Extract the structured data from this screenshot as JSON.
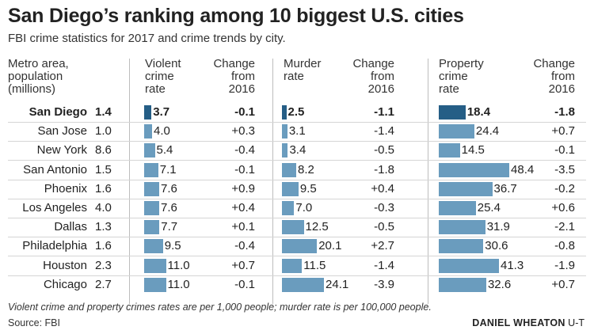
{
  "title": "San Diego’s ranking among 10 biggest U.S. cities",
  "subtitle": "FBI crime statistics for 2017 and crime trends by city.",
  "headers": {
    "metro": [
      "Metro area,",
      "population",
      "(millions)"
    ],
    "violent": [
      "Violent",
      "crime",
      "rate"
    ],
    "violent_change": [
      "Change",
      "from",
      "2016"
    ],
    "murder": [
      "Murder",
      "rate"
    ],
    "murder_change": [
      "Change",
      "from",
      "2016"
    ],
    "property": [
      "Property",
      "crime",
      "rate"
    ],
    "property_change": [
      "Change",
      "from",
      "2016"
    ]
  },
  "colors": {
    "highlight_bar": "#255e86",
    "bar": "#6a9cbe"
  },
  "chart_data": {
    "type": "table",
    "highlight": "San Diego",
    "columns": [
      "Metro area",
      "Population (millions)",
      "Violent crime rate",
      "Change from 2016",
      "Murder rate",
      "Change from 2016",
      "Property crime rate",
      "Change from 2016"
    ],
    "rows": [
      {
        "city": "San Diego",
        "population": "1.4",
        "violent": "3.7",
        "violent_change": "-0.1",
        "murder": "2.5",
        "murder_change": "-1.1",
        "property": "18.4",
        "property_change": "-1.8"
      },
      {
        "city": "San Jose",
        "population": "1.0",
        "violent": "4.0",
        "violent_change": "+0.3",
        "murder": "3.1",
        "murder_change": "-1.4",
        "property": "24.4",
        "property_change": "+0.7"
      },
      {
        "city": "New York",
        "population": "8.6",
        "violent": "5.4",
        "violent_change": "-0.4",
        "murder": "3.4",
        "murder_change": "-0.5",
        "property": "14.5",
        "property_change": "-0.1"
      },
      {
        "city": "San Antonio",
        "population": "1.5",
        "violent": "7.1",
        "violent_change": "-0.1",
        "murder": "8.2",
        "murder_change": "-1.8",
        "property": "48.4",
        "property_change": "-3.5"
      },
      {
        "city": "Phoenix",
        "population": "1.6",
        "violent": "7.6",
        "violent_change": "+0.9",
        "murder": "9.5",
        "murder_change": "+0.4",
        "property": "36.7",
        "property_change": "-0.2"
      },
      {
        "city": "Los Angeles",
        "population": "4.0",
        "violent": "7.6",
        "violent_change": "+0.4",
        "murder": "7.0",
        "murder_change": "-0.3",
        "property": "25.4",
        "property_change": "+0.6"
      },
      {
        "city": "Dallas",
        "population": "1.3",
        "violent": "7.7",
        "violent_change": "+0.1",
        "murder": "12.5",
        "murder_change": "-0.5",
        "property": "31.9",
        "property_change": "-2.1"
      },
      {
        "city": "Philadelphia",
        "population": "1.6",
        "violent": "9.5",
        "violent_change": "-0.4",
        "murder": "20.1",
        "murder_change": "+2.7",
        "property": "30.6",
        "property_change": "-0.8"
      },
      {
        "city": "Houston",
        "population": "2.3",
        "violent": "11.0",
        "violent_change": "+0.7",
        "murder": "11.5",
        "murder_change": "-1.4",
        "property": "41.3",
        "property_change": "-1.9"
      },
      {
        "city": "Chicago",
        "population": "2.7",
        "violent": "11.0",
        "violent_change": "-0.1",
        "murder": "24.1",
        "murder_change": "-3.9",
        "property": "32.6",
        "property_change": "+0.7"
      }
    ]
  },
  "footnote": "Violent crime and property crimes rates are per 1,000 people; murder rate is per 100,000 people.",
  "source": "Source: FBI",
  "credit": {
    "name": "DANIEL WHEATON",
    "org": "U-T"
  }
}
